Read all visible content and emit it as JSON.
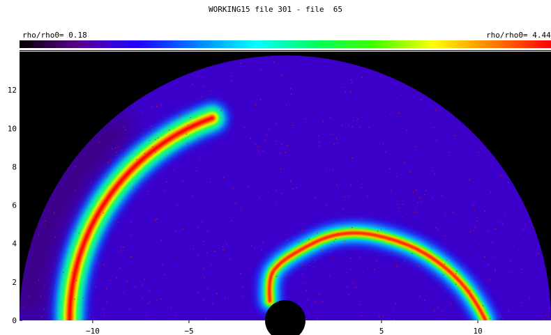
{
  "title": "WORKING15 file 301 - file  65",
  "colorbar": {
    "min_label": "rho/rho0= 0.18",
    "max_label": "rho/rho0= 4.44",
    "min": 0.18,
    "max": 4.44,
    "colormap": [
      "#000000",
      "#5a0090",
      "#2000ff",
      "#0080ff",
      "#00ffff",
      "#00ff60",
      "#40ff00",
      "#ffff00",
      "#ff8000",
      "#ff0000"
    ]
  },
  "chart_data": {
    "type": "heatmap",
    "title": "WORKING15 file 301 - file  65",
    "xlabel": "",
    "ylabel": "",
    "xlim": [
      -13.8,
      13.8
    ],
    "ylim": [
      0,
      14
    ],
    "x_ticks": [
      -10,
      -5,
      0,
      5,
      10
    ],
    "x_tick_labels": [
      "−10",
      "−5",
      "0",
      "5",
      "10"
    ],
    "y_ticks": [
      0,
      2,
      4,
      6,
      8,
      10,
      12
    ],
    "y_tick_labels": [
      "0",
      "2",
      "4",
      "6",
      "8",
      "10",
      "12"
    ],
    "domain_radius": 13.8,
    "inner_hole_radius": 1.05,
    "background_density": 0.9,
    "features": [
      {
        "name": "outer arc",
        "center": [
          0,
          0
        ],
        "radius": 11.2,
        "peak_density": 4.44
      },
      {
        "name": "inner spiral",
        "points": [
          [
            -0.8,
            1.0
          ],
          [
            -0.9,
            2.2
          ],
          [
            -0.3,
            3.0
          ],
          [
            0.8,
            3.7
          ],
          [
            2.2,
            4.4
          ],
          [
            3.6,
            4.6
          ],
          [
            5.0,
            4.4
          ],
          [
            6.8,
            3.8
          ],
          [
            8.3,
            2.8
          ],
          [
            9.4,
            1.7
          ],
          [
            10.1,
            0.6
          ],
          [
            10.4,
            0
          ]
        ],
        "peak_density": 4.44
      }
    ],
    "grid": false
  }
}
